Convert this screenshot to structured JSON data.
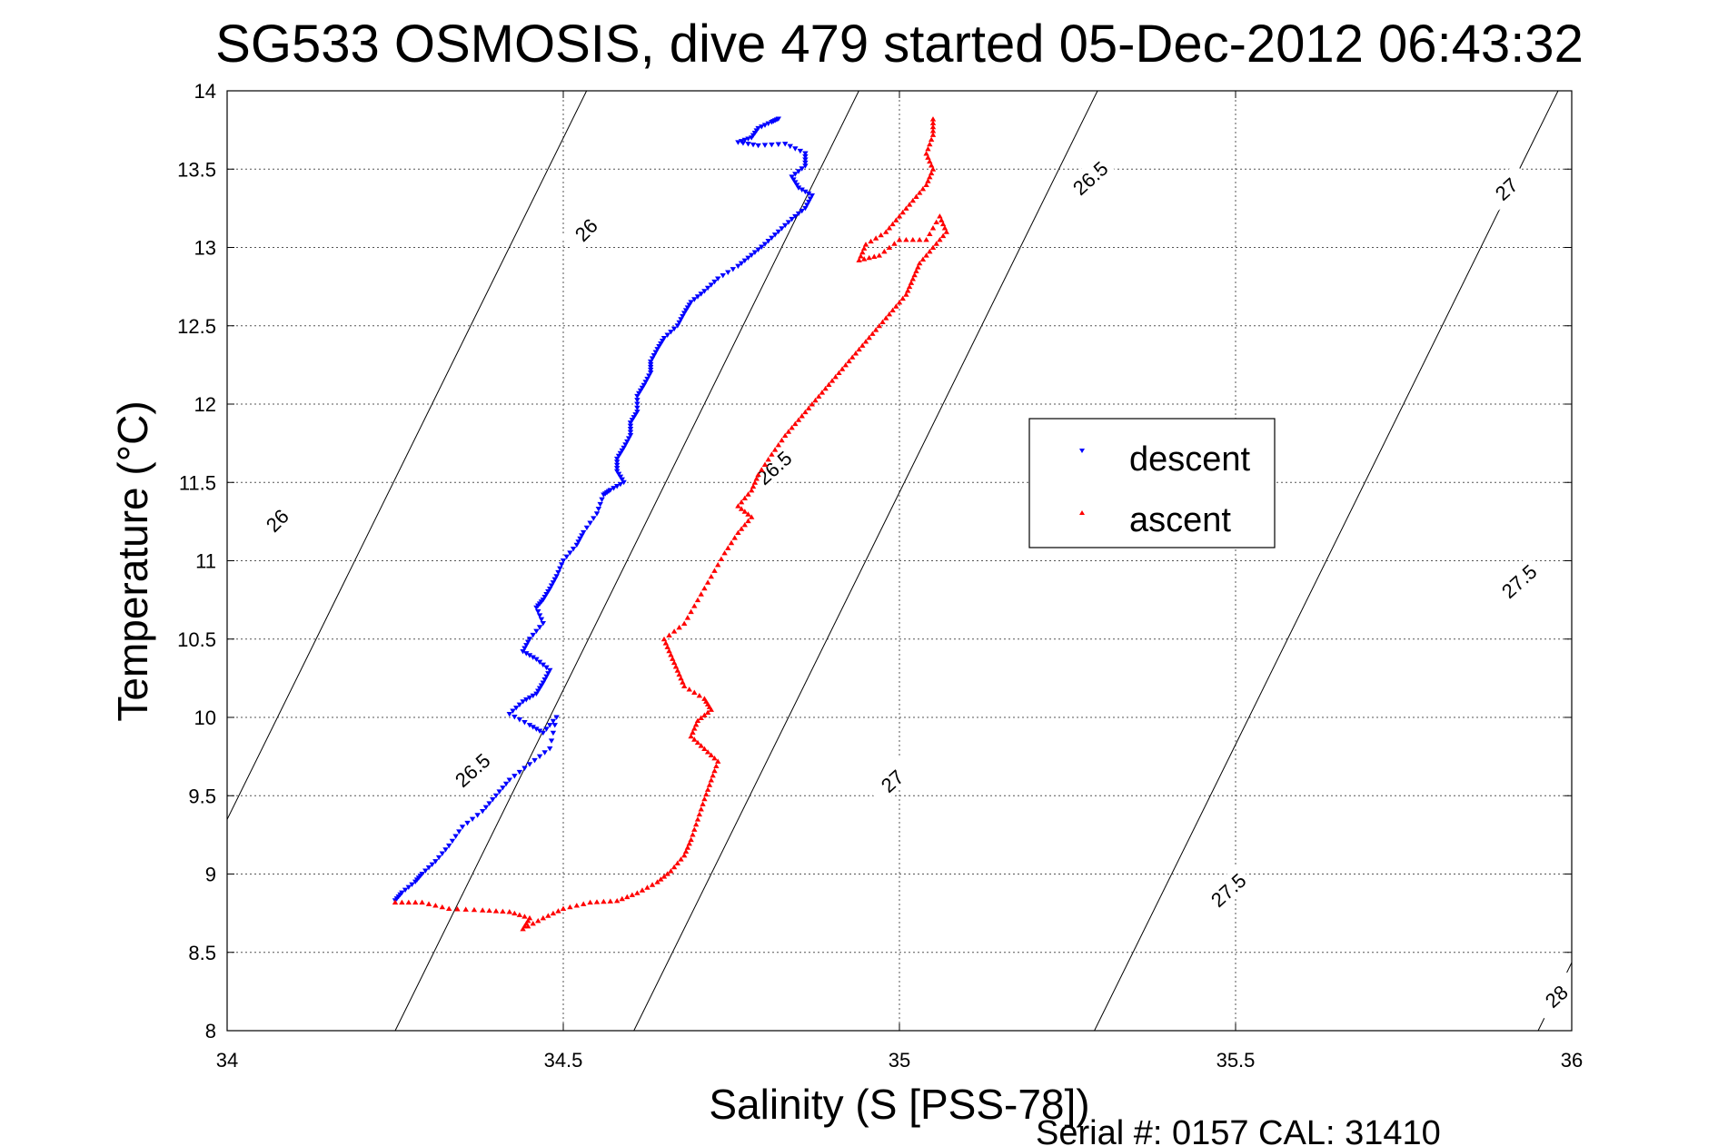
{
  "chart_data": {
    "type": "scatter",
    "title": "SG533 OSMOSIS, dive 479 started 05-Dec-2012 06:43:32",
    "xlabel": "Salinity (S [PSS-78])",
    "ylabel": "Temperature (°C)",
    "xlim": [
      34,
      36
    ],
    "ylim": [
      8,
      14
    ],
    "xticks": [
      34,
      34.5,
      35,
      35.5,
      36
    ],
    "xtick_labels": [
      "34",
      "34.5",
      "35",
      "35.5",
      "36"
    ],
    "yticks": [
      8,
      8.5,
      9,
      9.5,
      10,
      10.5,
      11,
      11.5,
      12,
      12.5,
      13,
      13.5,
      14
    ],
    "ytick_labels": [
      "8",
      "8.5",
      "9",
      "9.5",
      "10",
      "10.5",
      "11",
      "11.5",
      "12",
      "12.5",
      "13",
      "13.5",
      "14"
    ],
    "grid": true,
    "legend_position": "right",
    "series": [
      {
        "name": "descent",
        "color": "#0000ff",
        "marker": "triangle-down",
        "points": [
          [
            34.82,
            13.82
          ],
          [
            34.81,
            13.8
          ],
          [
            34.79,
            13.76
          ],
          [
            34.78,
            13.7
          ],
          [
            34.76,
            13.67
          ],
          [
            34.79,
            13.65
          ],
          [
            34.83,
            13.66
          ],
          [
            34.86,
            13.6
          ],
          [
            34.86,
            13.52
          ],
          [
            34.84,
            13.45
          ],
          [
            34.85,
            13.38
          ],
          [
            34.87,
            13.33
          ],
          [
            34.86,
            13.25
          ],
          [
            34.84,
            13.18
          ],
          [
            34.82,
            13.1
          ],
          [
            34.8,
            13.02
          ],
          [
            34.78,
            12.95
          ],
          [
            34.76,
            12.88
          ],
          [
            34.73,
            12.8
          ],
          [
            34.71,
            12.72
          ],
          [
            34.69,
            12.65
          ],
          [
            34.68,
            12.58
          ],
          [
            34.67,
            12.5
          ],
          [
            34.65,
            12.42
          ],
          [
            34.64,
            12.35
          ],
          [
            34.63,
            12.27
          ],
          [
            34.63,
            12.2
          ],
          [
            34.62,
            12.12
          ],
          [
            34.61,
            12.05
          ],
          [
            34.61,
            11.95
          ],
          [
            34.6,
            11.88
          ],
          [
            34.6,
            11.8
          ],
          [
            34.59,
            11.72
          ],
          [
            34.58,
            11.65
          ],
          [
            34.58,
            11.57
          ],
          [
            34.59,
            11.5
          ],
          [
            34.57,
            11.45
          ],
          [
            34.56,
            11.42
          ],
          [
            34.55,
            11.3
          ],
          [
            34.53,
            11.18
          ],
          [
            34.52,
            11.1
          ],
          [
            34.5,
            11.0
          ],
          [
            34.49,
            10.9
          ],
          [
            34.48,
            10.82
          ],
          [
            34.47,
            10.75
          ],
          [
            34.46,
            10.7
          ],
          [
            34.47,
            10.6
          ],
          [
            34.45,
            10.5
          ],
          [
            34.44,
            10.42
          ],
          [
            34.46,
            10.37
          ],
          [
            34.48,
            10.3
          ],
          [
            34.47,
            10.22
          ],
          [
            34.46,
            10.15
          ],
          [
            34.44,
            10.1
          ],
          [
            34.42,
            10.02
          ],
          [
            34.45,
            9.95
          ],
          [
            34.47,
            9.9
          ],
          [
            34.49,
            10.0
          ],
          [
            34.48,
            9.8
          ],
          [
            34.45,
            9.7
          ],
          [
            34.42,
            9.6
          ],
          [
            34.4,
            9.5
          ],
          [
            34.38,
            9.4
          ],
          [
            34.35,
            9.3
          ],
          [
            34.33,
            9.18
          ],
          [
            34.31,
            9.08
          ],
          [
            34.29,
            9.0
          ],
          [
            34.28,
            8.95
          ],
          [
            34.26,
            8.88
          ],
          [
            34.25,
            8.83
          ]
        ]
      },
      {
        "name": "ascent",
        "color": "#ff0000",
        "marker": "triangle-up",
        "points": [
          [
            34.25,
            8.82
          ],
          [
            34.29,
            8.82
          ],
          [
            34.33,
            8.78
          ],
          [
            34.38,
            8.77
          ],
          [
            34.42,
            8.76
          ],
          [
            34.45,
            8.72
          ],
          [
            34.44,
            8.65
          ],
          [
            34.47,
            8.72
          ],
          [
            34.5,
            8.78
          ],
          [
            34.54,
            8.82
          ],
          [
            34.58,
            8.83
          ],
          [
            34.61,
            8.88
          ],
          [
            34.64,
            8.95
          ],
          [
            34.66,
            9.02
          ],
          [
            34.68,
            9.12
          ],
          [
            34.69,
            9.22
          ],
          [
            34.7,
            9.35
          ],
          [
            34.71,
            9.48
          ],
          [
            34.72,
            9.6
          ],
          [
            34.73,
            9.72
          ],
          [
            34.71,
            9.8
          ],
          [
            34.69,
            9.88
          ],
          [
            34.7,
            9.98
          ],
          [
            34.72,
            10.05
          ],
          [
            34.71,
            10.12
          ],
          [
            34.68,
            10.2
          ],
          [
            34.67,
            10.3
          ],
          [
            34.66,
            10.4
          ],
          [
            34.65,
            10.5
          ],
          [
            34.68,
            10.6
          ],
          [
            34.7,
            10.75
          ],
          [
            34.72,
            10.9
          ],
          [
            34.74,
            11.05
          ],
          [
            34.76,
            11.18
          ],
          [
            34.78,
            11.28
          ],
          [
            34.76,
            11.35
          ],
          [
            34.78,
            11.45
          ],
          [
            34.79,
            11.55
          ],
          [
            34.81,
            11.68
          ],
          [
            34.83,
            11.8
          ],
          [
            34.85,
            11.9
          ],
          [
            34.87,
            12.0
          ],
          [
            34.89,
            12.1
          ],
          [
            34.91,
            12.2
          ],
          [
            34.93,
            12.3
          ],
          [
            34.95,
            12.4
          ],
          [
            34.97,
            12.5
          ],
          [
            34.99,
            12.6
          ],
          [
            35.01,
            12.7
          ],
          [
            35.02,
            12.8
          ],
          [
            35.03,
            12.9
          ],
          [
            35.05,
            13.0
          ],
          [
            35.07,
            13.1
          ],
          [
            35.06,
            13.2
          ],
          [
            35.04,
            13.05
          ],
          [
            35.0,
            13.05
          ],
          [
            34.97,
            12.95
          ],
          [
            34.94,
            12.92
          ],
          [
            34.95,
            13.02
          ],
          [
            34.98,
            13.1
          ],
          [
            35.0,
            13.2
          ],
          [
            35.02,
            13.3
          ],
          [
            35.04,
            13.4
          ],
          [
            35.05,
            13.5
          ],
          [
            35.04,
            13.6
          ],
          [
            35.05,
            13.72
          ],
          [
            35.05,
            13.82
          ]
        ]
      }
    ],
    "contour_labels": [
      {
        "text": "26"
      },
      {
        "text": "26"
      },
      {
        "text": "26.5"
      },
      {
        "text": "26.5"
      },
      {
        "text": "26.5"
      },
      {
        "text": "27"
      },
      {
        "text": "27"
      },
      {
        "text": "27.5"
      },
      {
        "text": "27.5"
      },
      {
        "text": "28"
      }
    ]
  },
  "footer": {
    "serial": "Serial #: 0157  CAL: 31410"
  }
}
